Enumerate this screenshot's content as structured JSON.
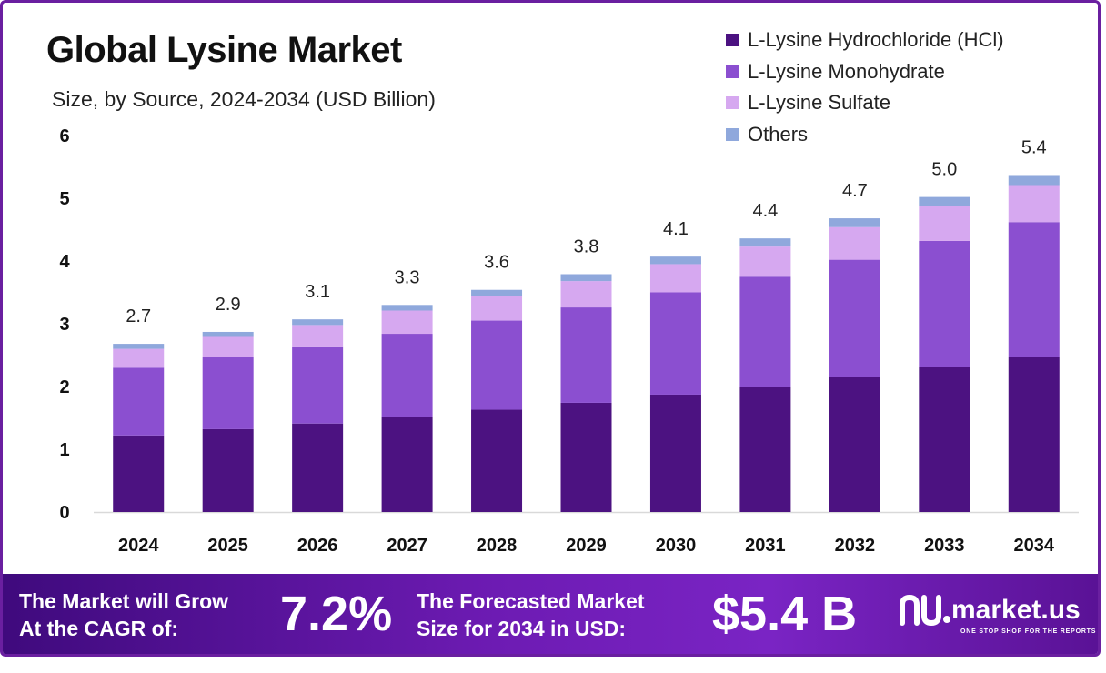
{
  "header": {
    "title": "Global Lysine Market",
    "subtitle": "Size, by Source, 2024-2034 (USD Billion)"
  },
  "chart_data": {
    "type": "bar",
    "stacked": true,
    "title": "Global Lysine Market",
    "subtitle": "Size, by Source, 2024-2034 (USD Billion)",
    "categories": [
      "2024",
      "2025",
      "2026",
      "2027",
      "2028",
      "2029",
      "2030",
      "2031",
      "2032",
      "2033",
      "2034"
    ],
    "series": [
      {
        "name": "L-Lysine Hydrochloride (HCl)",
        "color": "#4c1281",
        "values": [
          1.22,
          1.32,
          1.41,
          1.51,
          1.63,
          1.74,
          1.87,
          2.0,
          2.15,
          2.31,
          2.47
        ]
      },
      {
        "name": "L-Lysine Monohydrate",
        "color": "#8b4fd0",
        "values": [
          1.08,
          1.15,
          1.23,
          1.33,
          1.42,
          1.52,
          1.63,
          1.75,
          1.87,
          2.01,
          2.15
        ]
      },
      {
        "name": "L-Lysine Sulfate",
        "color": "#d6a8f0",
        "values": [
          0.3,
          0.32,
          0.34,
          0.37,
          0.39,
          0.42,
          0.45,
          0.48,
          0.52,
          0.55,
          0.59
        ]
      },
      {
        "name": "Others",
        "color": "#8fa8dc",
        "values": [
          0.08,
          0.08,
          0.09,
          0.09,
          0.1,
          0.11,
          0.12,
          0.13,
          0.14,
          0.15,
          0.16
        ]
      }
    ],
    "totals": [
      "2.7",
      "2.9",
      "3.1",
      "3.3",
      "3.6",
      "3.8",
      "4.1",
      "4.4",
      "4.7",
      "5.0",
      "5.4"
    ],
    "yticks": [
      "0",
      "1",
      "2",
      "3",
      "4",
      "5",
      "6"
    ],
    "ylim": [
      0,
      6
    ],
    "xlabel": "",
    "ylabel": "",
    "grid": false,
    "legend_position": "top-right"
  },
  "footer": {
    "cagr_label_line1": "The Market will Grow",
    "cagr_label_line2": "At the CAGR of:",
    "cagr_value": "7.2%",
    "forecast_label_line1": "The Forecasted Market",
    "forecast_label_line2": "Size for 2034 in USD:",
    "forecast_value": "$5.4 B",
    "brand_name": "market.us",
    "brand_tagline": "ONE STOP SHOP FOR THE REPORTS"
  }
}
